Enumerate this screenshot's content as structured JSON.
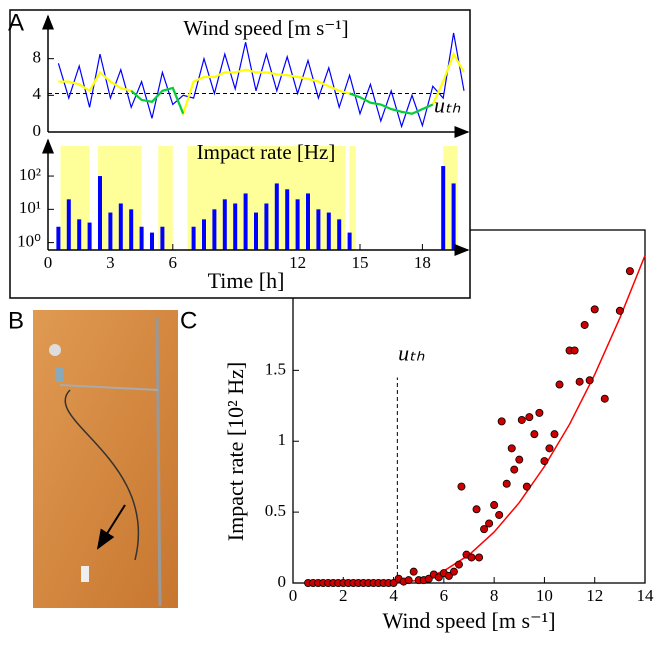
{
  "chart_data": [
    {
      "type": "line",
      "panel": "A",
      "title": "Wind speed [m s⁻¹]",
      "x": [
        0.5,
        1,
        1.5,
        2,
        2.5,
        3,
        3.5,
        4,
        4.5,
        5,
        5.5,
        6,
        6.5,
        7,
        7.5,
        8,
        8.5,
        9,
        9.5,
        10,
        10.5,
        11,
        11.5,
        12,
        12.5,
        13,
        13.5,
        14,
        14.5,
        15,
        15.5,
        16,
        16.5,
        17,
        17.5,
        18,
        18.5,
        19,
        19.5,
        20
      ],
      "series": [
        {
          "color": "#0000ff",
          "values": [
            7.5,
            3.7,
            7.2,
            2.7,
            8.5,
            3.7,
            6.8,
            2.7,
            5.5,
            1.5,
            6.5,
            3.0,
            4.0,
            3.7,
            8.0,
            4.2,
            8.5,
            4.7,
            9.8,
            4.5,
            8.5,
            4.5,
            8.2,
            4.2,
            7.8,
            3.7,
            7.0,
            2.7,
            6.2,
            2.0,
            5.2,
            1.2,
            4.5,
            0.6,
            4.0,
            0.7,
            5.0,
            3.7,
            10.8,
            4.5
          ]
        },
        {
          "color": "#ffff00",
          "values": [
            5.5,
            5.5,
            5.2,
            4.5,
            6.5,
            5.5,
            4.8,
            4.5,
            3.5,
            3.3,
            4.5,
            4.8,
            2.0,
            5.5,
            6.0,
            6.0,
            6.5,
            6.5,
            6.8,
            6.5,
            6.5,
            6.3,
            6.2,
            6.0,
            5.8,
            5.5,
            5.0,
            4.5,
            4.2,
            3.8,
            3.2,
            3.0,
            2.5,
            2.2,
            2.0,
            2.5,
            3.0,
            5.5,
            8.5,
            6.5
          ]
        },
        {
          "color": "#00cc44",
          "values": [
            null,
            null,
            null,
            null,
            null,
            null,
            null,
            4.5,
            3.5,
            3.3,
            4.5,
            4.8,
            2.0,
            null,
            null,
            null,
            null,
            null,
            null,
            null,
            null,
            null,
            null,
            null,
            null,
            null,
            null,
            null,
            4.2,
            3.8,
            3.2,
            3.0,
            2.5,
            2.2,
            2.0,
            2.5,
            3.0,
            null,
            null,
            null
          ]
        }
      ],
      "threshold": 4.2,
      "threshold_label": "uₜₕ",
      "xlim": [
        0,
        20
      ],
      "ylim": [
        0,
        12
      ],
      "yticks": [
        0,
        4,
        8
      ]
    },
    {
      "type": "bar",
      "title": "Impact rate [Hz]",
      "x": [
        0.5,
        1,
        1.5,
        2,
        2.5,
        3,
        3.5,
        4,
        4.5,
        5,
        5.5,
        6,
        6.5,
        7,
        7.5,
        8,
        8.5,
        9,
        9.5,
        10,
        10.5,
        11,
        11.5,
        12,
        12.5,
        13,
        13.5,
        14,
        14.5,
        15,
        15.5,
        16,
        16.5,
        17,
        17.5,
        18,
        18.5,
        19,
        19.5,
        20
      ],
      "values": [
        3,
        20,
        5,
        4,
        100,
        8,
        15,
        10,
        3,
        2,
        3,
        null,
        null,
        3,
        5,
        10,
        20,
        15,
        30,
        8,
        15,
        60,
        40,
        20,
        30,
        10,
        8,
        5,
        2,
        null,
        null,
        null,
        null,
        null,
        null,
        null,
        null,
        200,
        60,
        null
      ],
      "color": "#0000ff",
      "shaded": [
        [
          0.6,
          2.0
        ],
        [
          2.4,
          4.5
        ],
        [
          5.3,
          6.0
        ],
        [
          6.7,
          14.3
        ],
        [
          14.5,
          14.8
        ],
        [
          19.0,
          19.7
        ]
      ],
      "shade_color": "#ffff99",
      "log_y": true,
      "xlim": [
        0,
        20
      ],
      "ylim": [
        0.6,
        800
      ],
      "yticks": [
        {
          "value": 1,
          "label": "10⁰"
        },
        {
          "value": 10,
          "label": "10¹"
        },
        {
          "value": 100,
          "label": "10²"
        }
      ],
      "xticks": [
        0,
        3,
        6,
        12,
        15,
        18
      ],
      "xlabel": "Time [h]"
    },
    {
      "type": "scatter",
      "panel": "C",
      "x": [
        0.6,
        0.8,
        1.0,
        1.2,
        1.4,
        1.6,
        1.8,
        2.0,
        2.2,
        2.4,
        2.6,
        2.8,
        3.0,
        3.2,
        3.4,
        3.6,
        3.8,
        4.0,
        4.2,
        4.4,
        4.6,
        4.8,
        5.0,
        5.2,
        5.4,
        5.6,
        5.8,
        6.0,
        6.2,
        6.4,
        6.6,
        6.7,
        6.9,
        7.1,
        7.3,
        7.4,
        7.6,
        7.8,
        8.0,
        8.2,
        8.3,
        8.5,
        8.7,
        8.8,
        9.0,
        9.1,
        9.3,
        9.4,
        9.6,
        9.8,
        10.0,
        10.2,
        10.4,
        10.6,
        11.0,
        11.2,
        11.4,
        11.6,
        11.8,
        12.0,
        12.4,
        13.0,
        13.4
      ],
      "values": [
        0,
        0,
        0,
        0,
        0,
        0,
        0,
        0,
        0,
        0,
        0,
        0,
        0,
        0,
        0,
        0,
        0,
        0,
        0.03,
        0.01,
        0.02,
        0.08,
        0.02,
        0.02,
        0.03,
        0.06,
        0.04,
        0.07,
        0.05,
        0.08,
        0.13,
        0.68,
        0.2,
        0.18,
        0.52,
        0.18,
        0.38,
        0.42,
        0.55,
        0.48,
        1.14,
        0.7,
        0.95,
        0.8,
        0.87,
        1.15,
        0.68,
        1.17,
        1.05,
        1.2,
        0.86,
        0.95,
        1.05,
        1.4,
        1.64,
        1.64,
        1.42,
        1.82,
        1.43,
        1.93,
        1.3,
        1.92,
        2.2
      ],
      "color": "#cc0000",
      "fit": {
        "color": "#ff0000",
        "x": [
          4.1,
          5,
          6,
          7,
          8,
          9,
          10,
          11,
          12,
          13,
          14
        ],
        "values": [
          0,
          0.019,
          0.085,
          0.198,
          0.359,
          0.567,
          0.822,
          1.12,
          1.47,
          1.87,
          2.31
        ]
      },
      "threshold": 4.15,
      "threshold_label": "uₜₕ",
      "xlim": [
        0,
        14
      ],
      "ylim": [
        0,
        2.49
      ],
      "xticks": [
        0,
        2,
        4,
        6,
        8,
        10,
        12,
        14
      ],
      "yticks": [
        0,
        0.5,
        1,
        1.5
      ],
      "xlabel": "Wind speed [m s⁻¹]",
      "ylabel": "Impact rate [10² Hz]"
    }
  ],
  "photo": {
    "panel": "B"
  }
}
